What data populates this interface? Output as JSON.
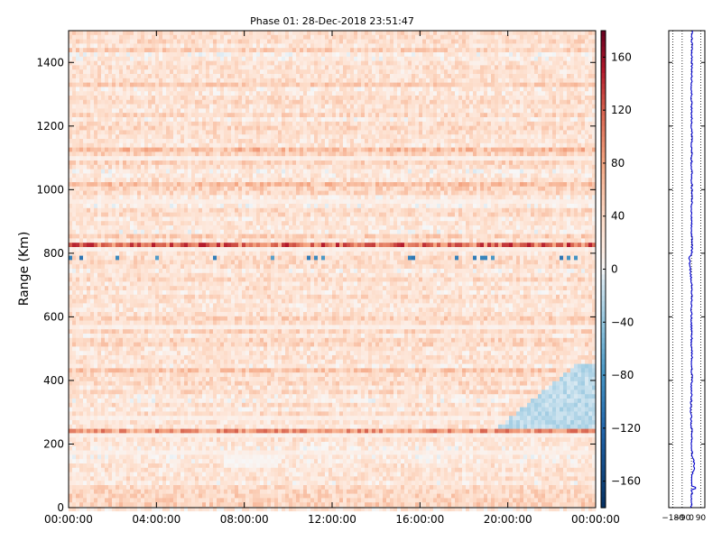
{
  "chart_data": [
    {
      "type": "heatmap",
      "title": "Phase 01: 28-Dec-2018 23:51:47",
      "xlabel": "",
      "ylabel": "Range (Km)",
      "x_ticks": [
        "00:00:00",
        "04:00:00",
        "08:00:00",
        "12:00:00",
        "16:00:00",
        "20:00:00",
        "00:00:00"
      ],
      "x_range_hours": [
        0,
        24
      ],
      "y_ticks": [
        0,
        200,
        400,
        600,
        800,
        1000,
        1200,
        1400
      ],
      "ylim": [
        0,
        1500
      ],
      "grid": false,
      "colormap": "RdBu_r",
      "colorbar": {
        "ticks": [
          -160,
          -120,
          -80,
          -40,
          0,
          40,
          80,
          120,
          160
        ],
        "range": [
          -180,
          180
        ]
      },
      "dominant_value": 30,
      "strong_bands": [
        {
          "range_km": 820,
          "value": 120
        },
        {
          "range_km": 235,
          "value": 95
        },
        {
          "range_km": 1125,
          "value": 70
        },
        {
          "range_km": 1020,
          "value": 65
        },
        {
          "range_km": 430,
          "value": 60
        },
        {
          "range_km": 1325,
          "value": 55
        }
      ],
      "low_value_region": "near 0 to -40 from 20:00 to 24:00 between 250 and 450 km; near 0 at 7:00–9:30 around 140–170 km"
    },
    {
      "type": "line",
      "x_ticks": [
        "-180",
        "-90",
        "0",
        "90"
      ],
      "xlim": [
        -220,
        130
      ],
      "ylim": [
        0,
        1500
      ],
      "grid": true,
      "series": [
        {
          "color": "#0000cc",
          "range_km": [
            0,
            60,
            100,
            130,
            180,
            235,
            300,
            360,
            430,
            500,
            600,
            700,
            785,
            800,
            900,
            1000,
            1100,
            1200,
            1300,
            1400,
            1500
          ],
          "values": [
            0,
            5,
            3,
            30,
            0,
            2,
            -5,
            0,
            5,
            2,
            0,
            3,
            -20,
            5,
            2,
            3,
            1,
            2,
            0,
            3,
            5
          ]
        }
      ],
      "spikes": [
        {
          "range_km": 62,
          "value": 40
        },
        {
          "range_km": 125,
          "value": 30
        },
        {
          "range_km": 785,
          "value": -25
        }
      ]
    }
  ]
}
